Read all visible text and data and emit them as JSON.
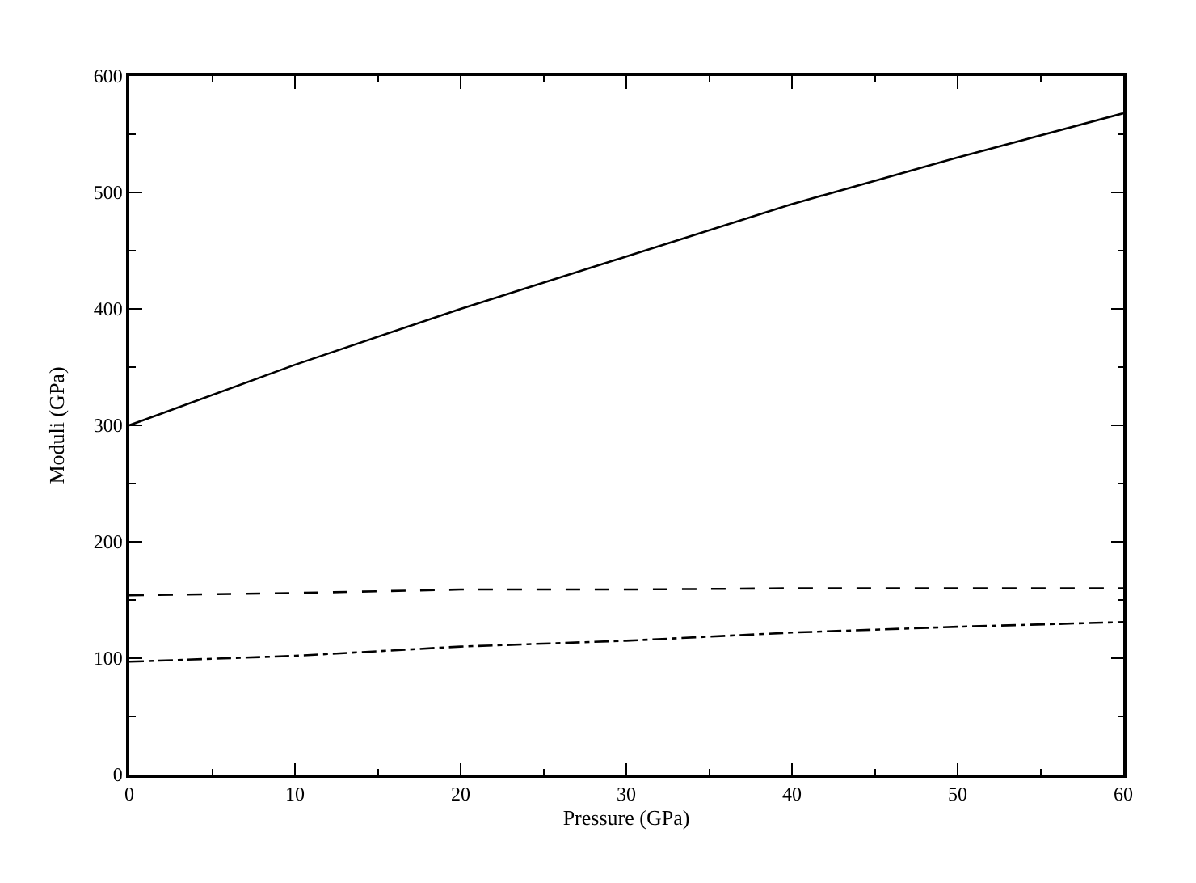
{
  "chart_data": {
    "type": "line",
    "xlabel": "Pressure (GPa)",
    "ylabel": "Moduli (GPa)",
    "x": [
      0,
      10,
      20,
      30,
      40,
      50,
      60
    ],
    "series": [
      {
        "color": "#000000",
        "line_style": "solid",
        "values": [
          300,
          352,
          400,
          445,
          490,
          530,
          568
        ]
      },
      {
        "color": "#000000",
        "line_style": "dashed",
        "values": [
          154,
          156,
          159,
          159,
          160,
          160,
          160
        ]
      },
      {
        "color": "#000000",
        "line_style": "dashdot",
        "values": [
          97,
          102,
          110,
          115,
          122,
          127,
          131
        ]
      }
    ],
    "xlim": [
      0,
      60
    ],
    "xticks": [
      0,
      10,
      20,
      30,
      40,
      50,
      60
    ],
    "ylim": [
      0,
      600
    ],
    "yticks": [
      0,
      100,
      200,
      300,
      400,
      500,
      600
    ],
    "legend": false,
    "marker": "none"
  }
}
